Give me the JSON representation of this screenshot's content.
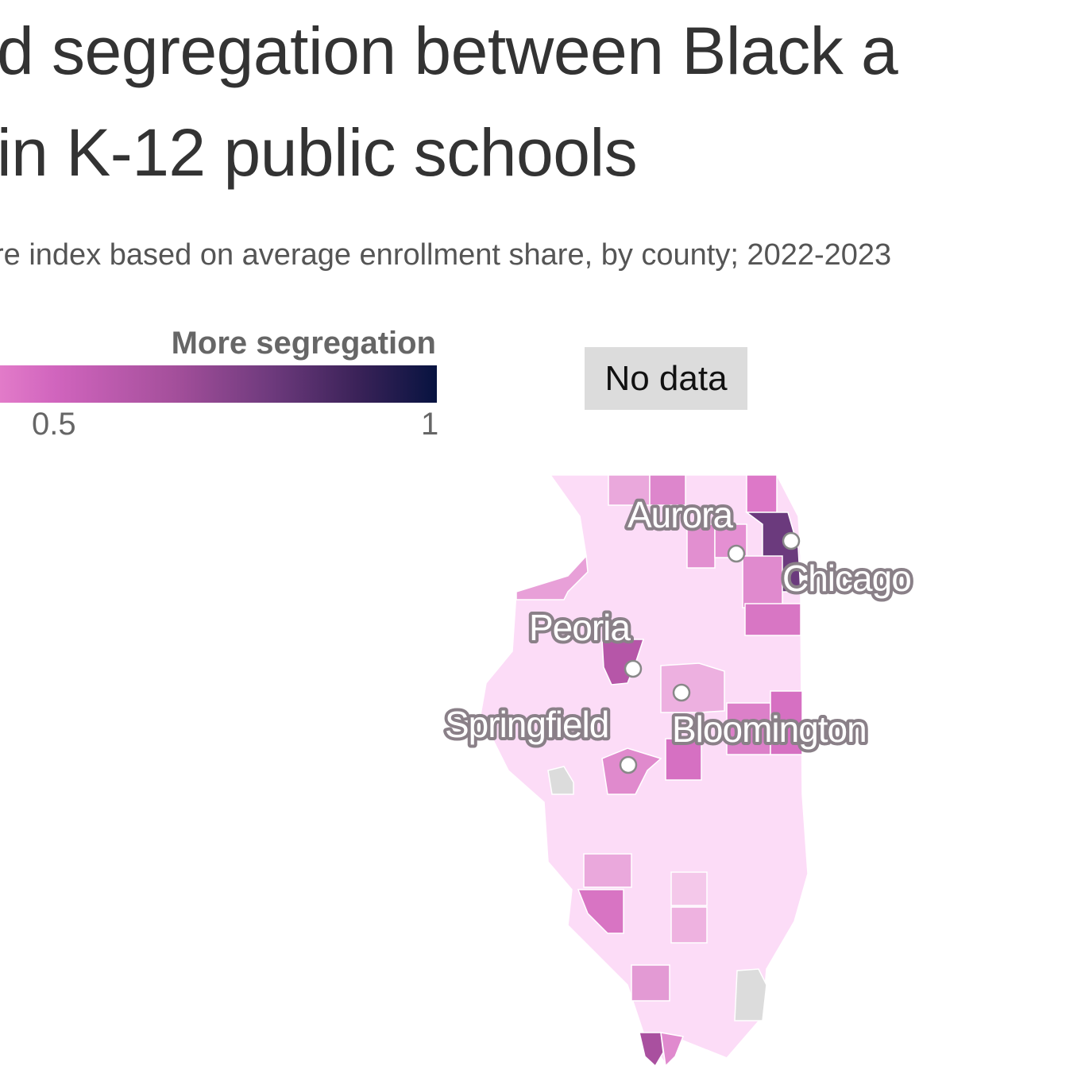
{
  "header": {
    "title_line1": "d segregation between Black a",
    "title_line2": " in K-12 public schools",
    "subtitle": "re index based on average enrollment share, by county; 2022-2023"
  },
  "legend": {
    "label": "More segregation",
    "tick_05": "0.5",
    "tick_1": "1",
    "no_data": "No data",
    "colors": {
      "low": "#fcdcf7",
      "mid": "#d064bd",
      "high": "#071340",
      "no_data": "#dcdcdc"
    }
  },
  "map": {
    "region": "Illinois",
    "cities": [
      {
        "name": "Aurora"
      },
      {
        "name": "Chicago"
      },
      {
        "name": "Peoria"
      },
      {
        "name": "Springfield"
      },
      {
        "name": "Bloomington"
      }
    ]
  }
}
